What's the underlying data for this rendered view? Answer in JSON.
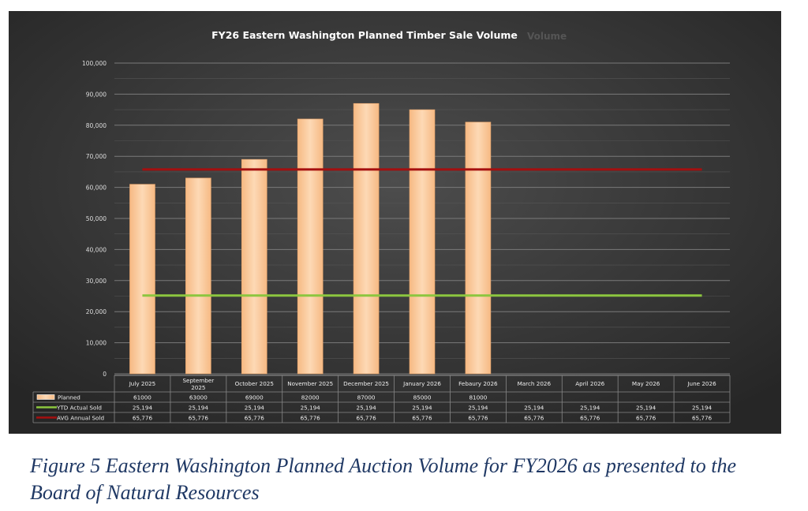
{
  "chart_data": {
    "type": "bar",
    "title": "FY26 Eastern Washington Planned Timber Sale Volume",
    "title_ghost": "Volume",
    "xlabel": "",
    "ylabel": "",
    "ylim": [
      0,
      100000
    ],
    "yticks": [
      "0",
      "10,000",
      "20,000",
      "30,000",
      "40,000",
      "50,000",
      "60,000",
      "70,000",
      "80,000",
      "90,000",
      "100,000"
    ],
    "grid": true,
    "legend": "data-table-bottom",
    "categories": [
      "July 2025",
      "September 2025",
      "October 2025",
      "November 2025",
      "December 2025",
      "January 2026",
      "Febaury 2026",
      "March 2026",
      "April 2026",
      "May 2026",
      "June 2026"
    ],
    "series": [
      {
        "name": "Planned",
        "kind": "bar",
        "color": "#f9c797",
        "values": [
          61000,
          63000,
          69000,
          82000,
          87000,
          85000,
          81000,
          null,
          null,
          null,
          null
        ],
        "labels": [
          "61000",
          "63000",
          "69000",
          "82000",
          "87000",
          "85000",
          "81000",
          "",
          "",
          "",
          ""
        ]
      },
      {
        "name": "YTD Actual Sold",
        "kind": "line",
        "color": "#8cc63f",
        "values": [
          25194,
          25194,
          25194,
          25194,
          25194,
          25194,
          25194,
          25194,
          25194,
          25194,
          25194
        ],
        "labels": [
          "25,194",
          "25,194",
          "25,194",
          "25,194",
          "25,194",
          "25,194",
          "25,194",
          "25,194",
          "25,194",
          "25,194",
          "25,194"
        ]
      },
      {
        "name": "AVG Annual Sold",
        "kind": "line",
        "color": "#a50f0f",
        "values": [
          65776,
          65776,
          65776,
          65776,
          65776,
          65776,
          65776,
          65776,
          65776,
          65776,
          65776
        ],
        "labels": [
          "65,776",
          "65,776",
          "65,776",
          "65,776",
          "65,776",
          "65,776",
          "65,776",
          "65,776",
          "65,776",
          "65,776",
          "65,776"
        ]
      }
    ]
  },
  "caption": "Figure 5 Eastern Washington Planned Auction Volume for FY2026 as presented to the Board of Natural Resources"
}
